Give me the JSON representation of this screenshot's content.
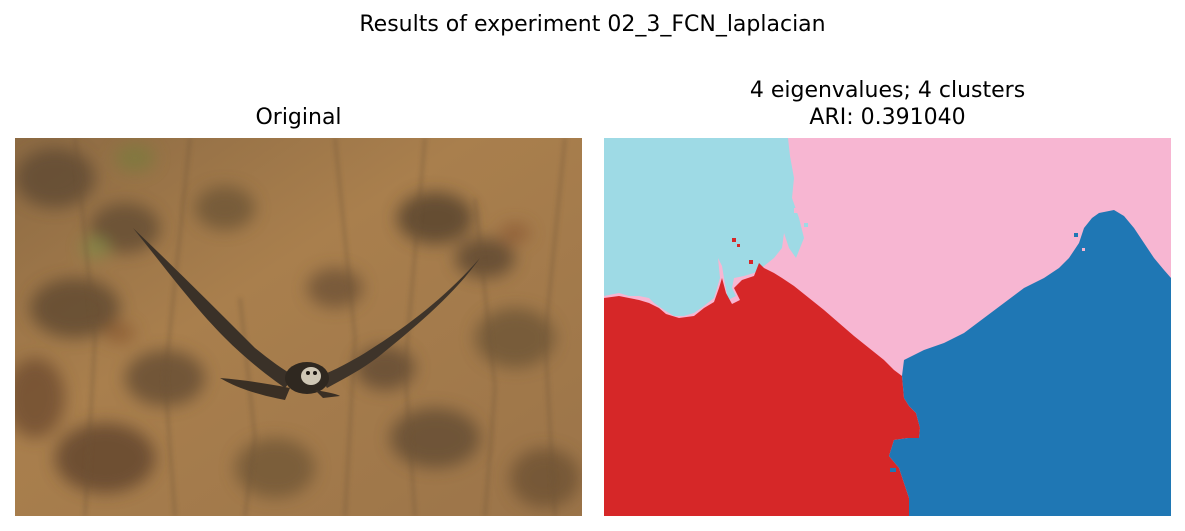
{
  "figure": {
    "suptitle": "Results of experiment 02_3_FCN_laplacian"
  },
  "left_panel": {
    "title": "Original",
    "image_description_icon": "hawk-photo"
  },
  "right_panel": {
    "title_line1": "4 eigenvalues; 4 clusters",
    "title_line2": "ARI: 0.391040",
    "clusters": [
      {
        "name": "cluster-cyan",
        "color": "#9edae5"
      },
      {
        "name": "cluster-pink",
        "color": "#f7b6d2"
      },
      {
        "name": "cluster-red",
        "color": "#d62728"
      },
      {
        "name": "cluster-blue",
        "color": "#1f77b4"
      }
    ]
  },
  "colors": {
    "background": "#ffffff",
    "photo_base": "#a47a4a",
    "bird": "#3a3128"
  }
}
